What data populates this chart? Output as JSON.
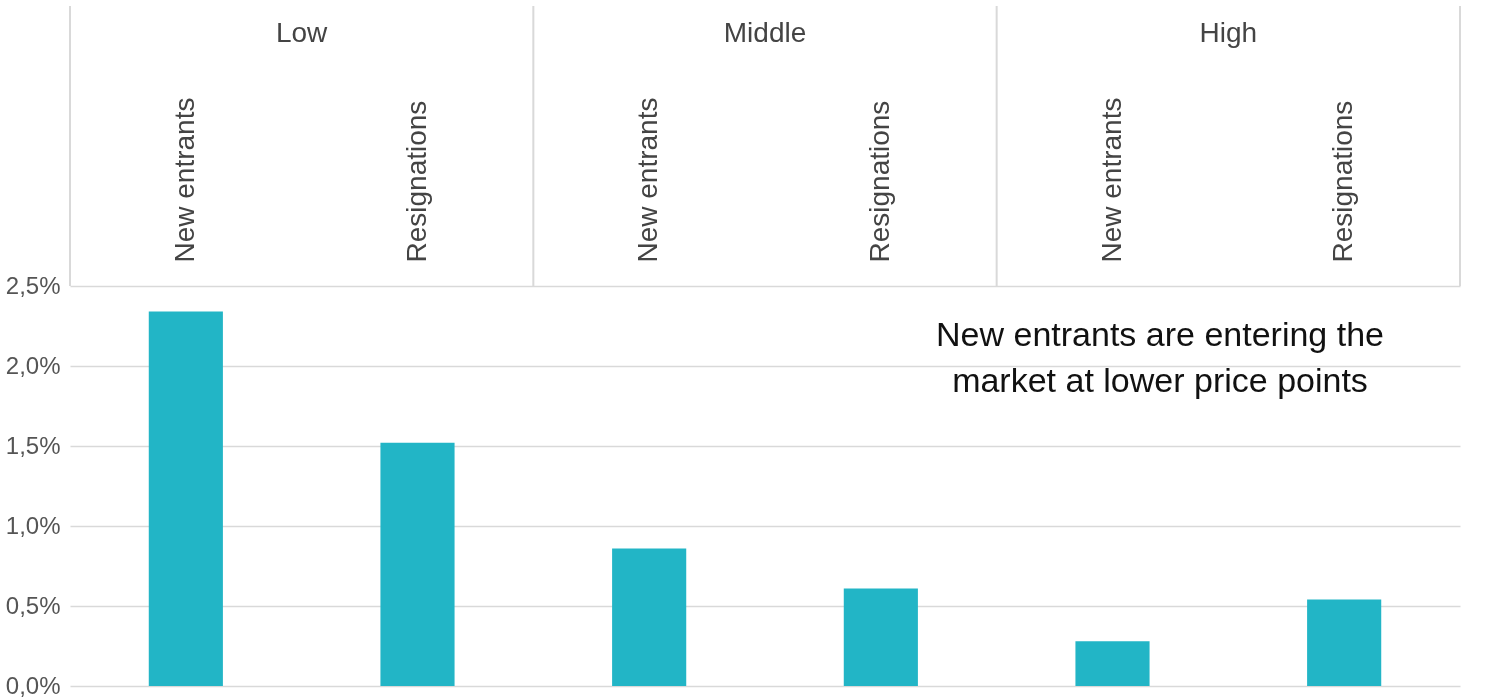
{
  "chart_data": {
    "type": "bar",
    "categories": [
      "New entrants",
      "Resignations",
      "New entrants",
      "Resignations",
      "New entrants",
      "Resignations"
    ],
    "values": [
      2.34,
      1.52,
      0.86,
      0.61,
      0.28,
      0.54
    ],
    "color": "#22b5c6",
    "ylim": [
      0,
      2.5
    ],
    "yticks": [
      {
        "value": 0,
        "label": "0,0%"
      },
      {
        "value": 0.5,
        "label": "0,5%"
      },
      {
        "value": 1,
        "label": "1,0%"
      },
      {
        "value": 1.5,
        "label": "1,5%"
      },
      {
        "value": 2,
        "label": "2,0%"
      },
      {
        "value": 2.5,
        "label": "2,5%"
      }
    ],
    "grid": "y",
    "annotations": [
      "Low",
      "Middle",
      "High",
      "New entrants are entering the\nmarket at lower price points"
    ]
  }
}
